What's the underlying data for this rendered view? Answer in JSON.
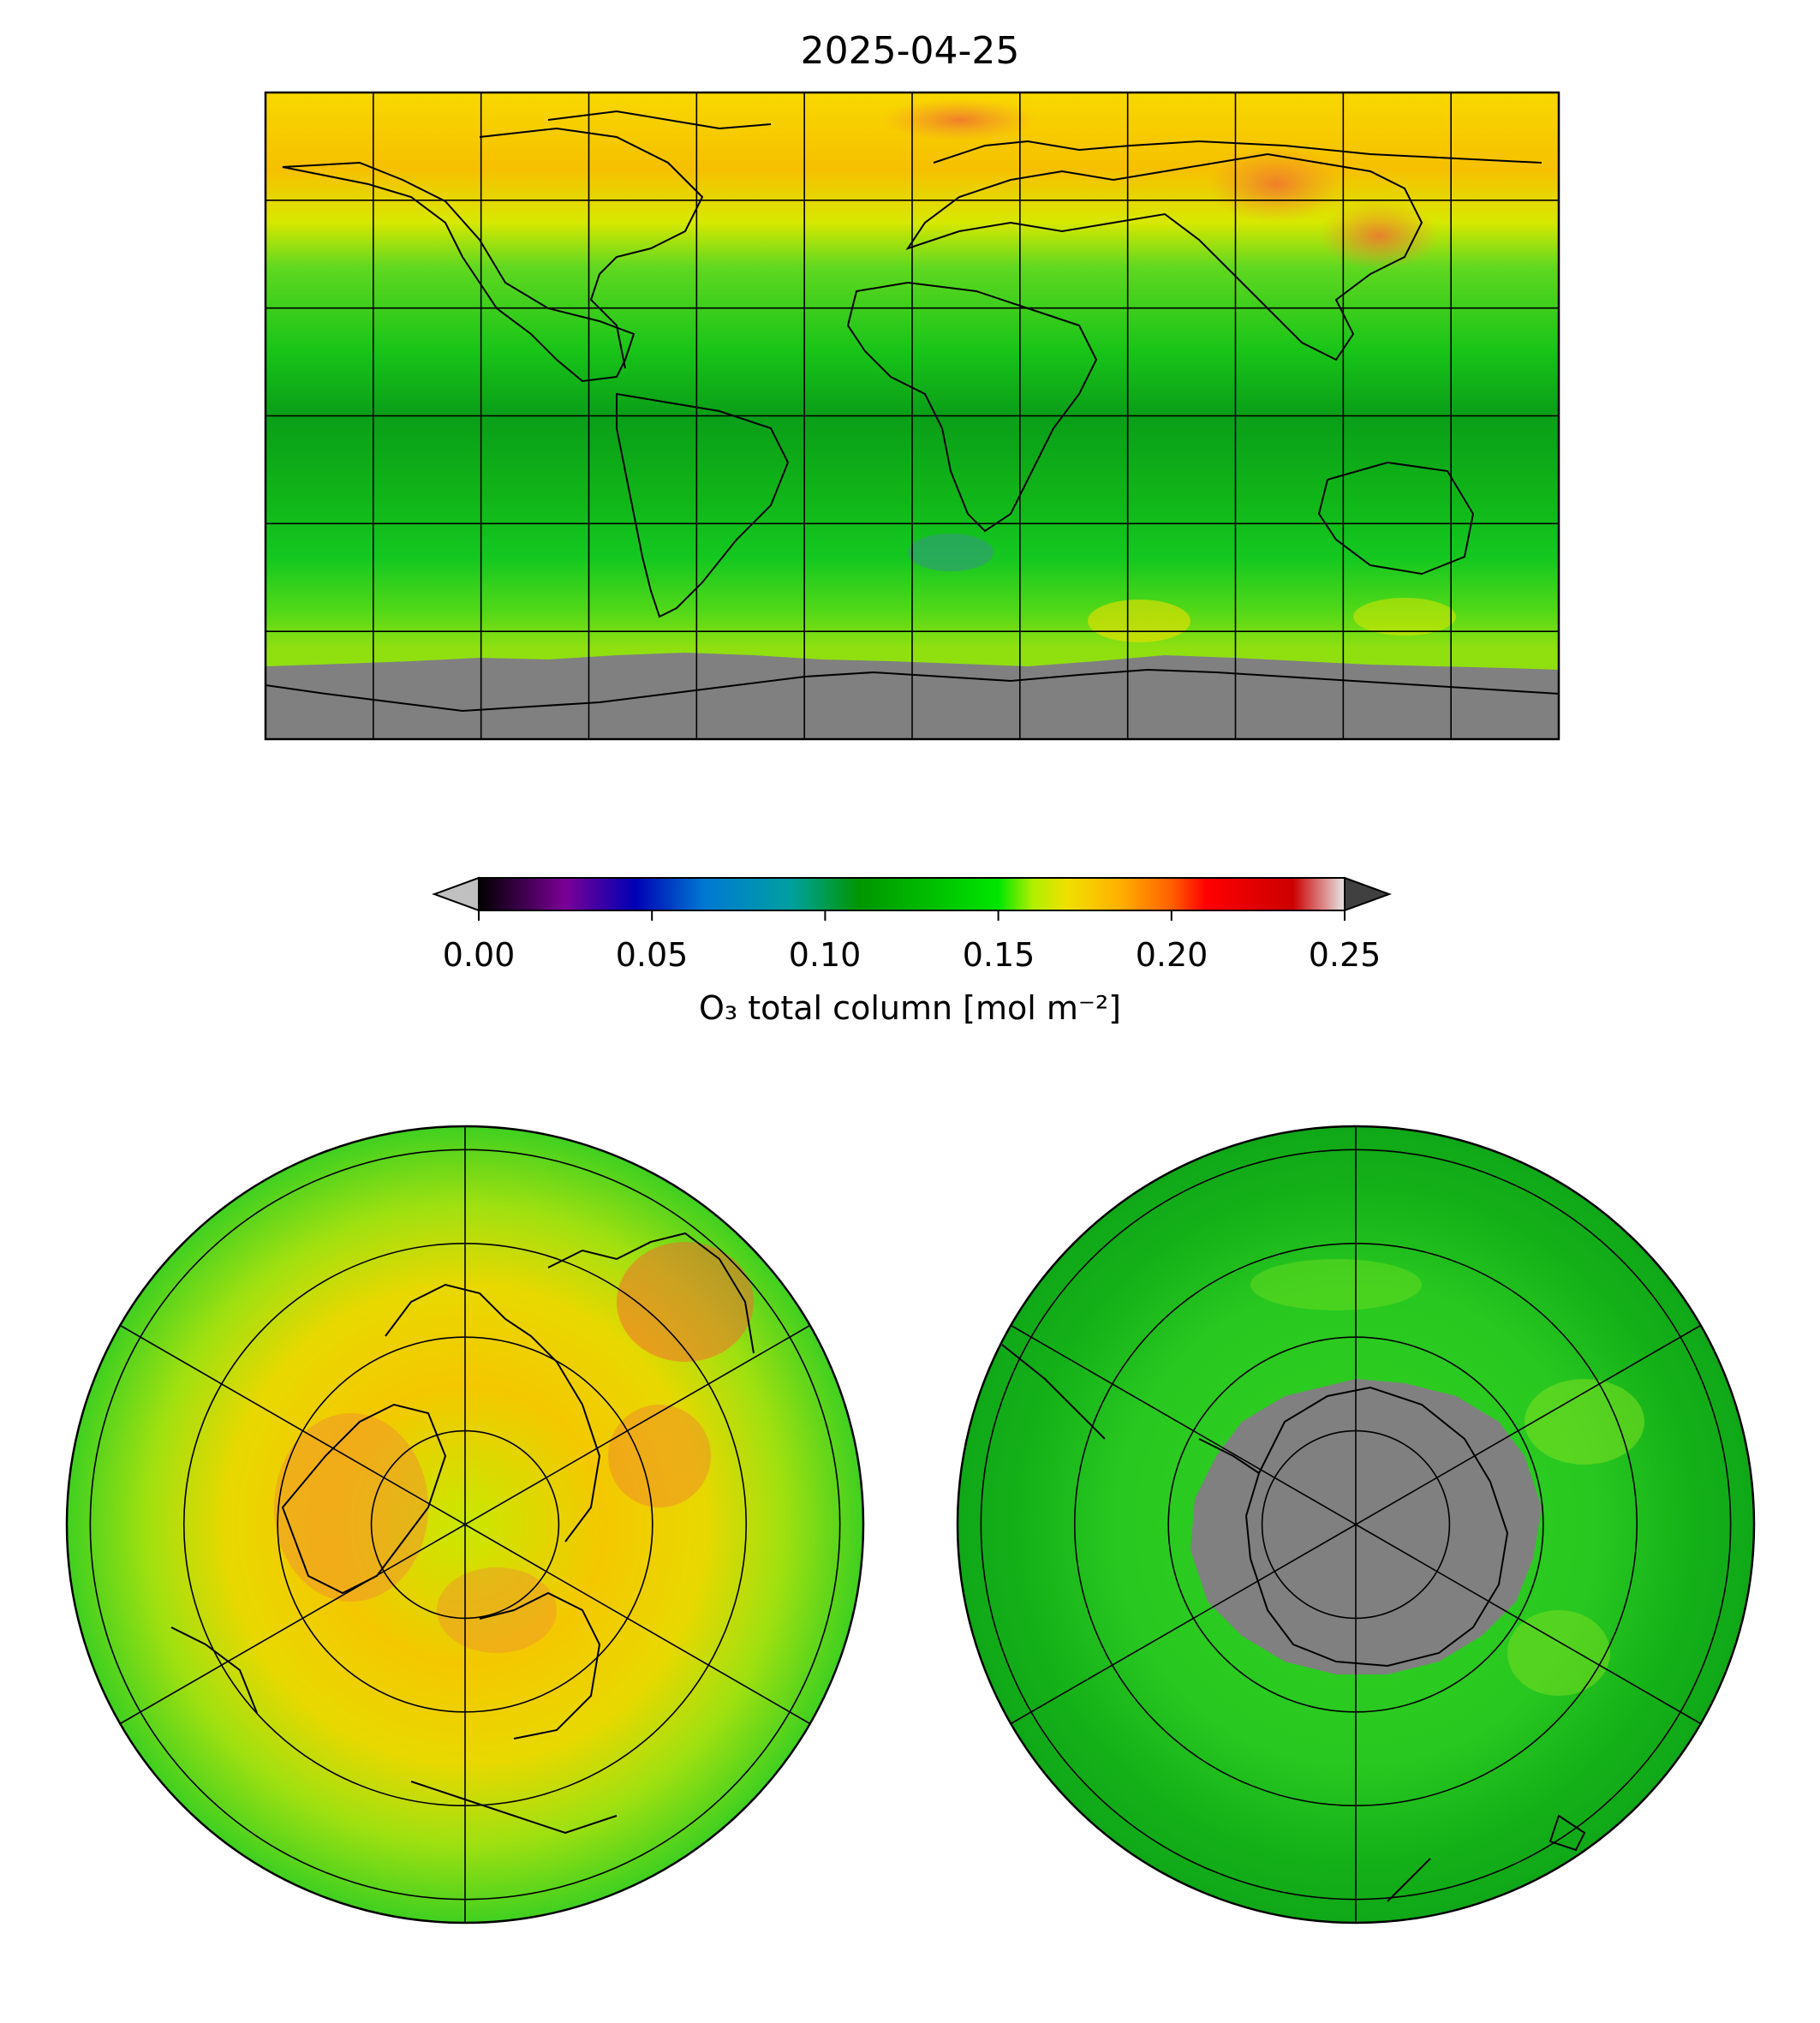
{
  "title": "2025-04-25",
  "colorbar": {
    "label": "O₃ total column [mol m⁻²]",
    "ticks": [
      "0.00",
      "0.05",
      "0.10",
      "0.15",
      "0.20",
      "0.25"
    ],
    "tick_values": [
      0.0,
      0.05,
      0.1,
      0.15,
      0.2,
      0.25
    ],
    "range": [
      0.0,
      0.25
    ],
    "extend": "both",
    "under_color": "#c0c0c0",
    "over_color": "#404040",
    "colormap_stops": [
      {
        "v": 0.0,
        "c": "#000000"
      },
      {
        "v": 0.025,
        "c": "#7a0096"
      },
      {
        "v": 0.045,
        "c": "#0000b4"
      },
      {
        "v": 0.065,
        "c": "#0078d2"
      },
      {
        "v": 0.09,
        "c": "#00a0a0"
      },
      {
        "v": 0.11,
        "c": "#009600"
      },
      {
        "v": 0.135,
        "c": "#00c800"
      },
      {
        "v": 0.15,
        "c": "#00e600"
      },
      {
        "v": 0.16,
        "c": "#b0f000"
      },
      {
        "v": 0.17,
        "c": "#f0e000"
      },
      {
        "v": 0.185,
        "c": "#ffb000"
      },
      {
        "v": 0.2,
        "c": "#ff6000"
      },
      {
        "v": 0.21,
        "c": "#ff0000"
      },
      {
        "v": 0.235,
        "c": "#cc0000"
      },
      {
        "v": 0.25,
        "c": "#e6e6e6"
      }
    ]
  },
  "colors": {
    "no_data": "#808080",
    "low_ozone_bg": "#10b810",
    "mid_lat": "#50d820",
    "high_ozone": "#f4c400",
    "peak_ozone": "#f08020",
    "coastline": "#000000",
    "gridline": "#000000"
  },
  "maps": [
    {
      "name": "global",
      "projection": "PlateCarree",
      "lon_gridlines": 12,
      "lat_gridlines": 6
    },
    {
      "name": "north-polar",
      "projection": "NorthPolarStereo",
      "radial_lines": 6,
      "lat_circles": 4
    },
    {
      "name": "south-polar",
      "projection": "SouthPolarStereo",
      "radial_lines": 6,
      "lat_circles": 4
    }
  ]
}
